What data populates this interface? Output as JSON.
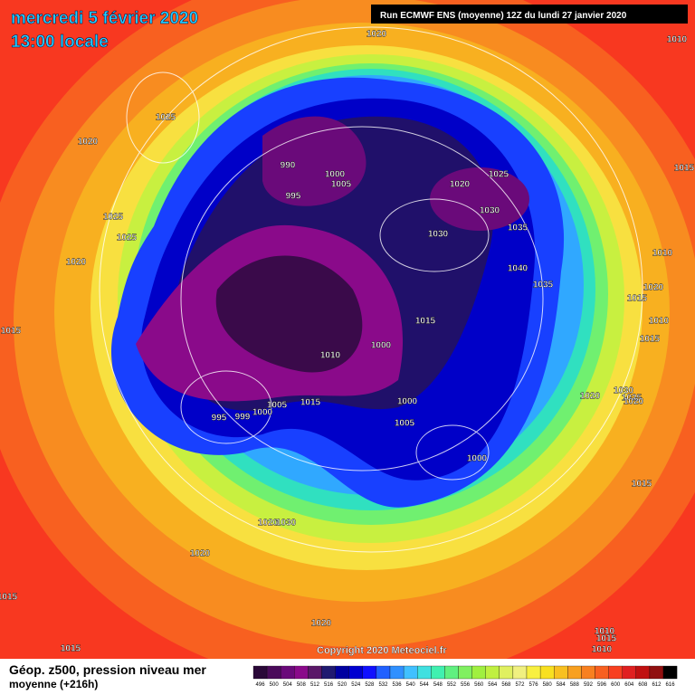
{
  "header": {
    "title": "mercredi 5 février 2020",
    "subtitle": "13:00 locale",
    "run": "Run ECMWF ENS (moyenne) 12Z du lundi 27 janvier 2020"
  },
  "isobar_labels": [
    "1020",
    "1010",
    "1025",
    "1020",
    "990",
    "1000",
    "1005",
    "995",
    "1020",
    "1025",
    "1030",
    "1030",
    "1035",
    "1015",
    "1025",
    "1025",
    "1020",
    "1040",
    "1035",
    "1010",
    "1020",
    "1015",
    "1015",
    "1015",
    "1000",
    "1010",
    "1010",
    "1015",
    "1005",
    "1015",
    "1000",
    "999",
    "995",
    "1000",
    "1005",
    "1020",
    "1030",
    "1025",
    "1020",
    "1000",
    "1015",
    "1020",
    "1030",
    "1020",
    "1015",
    "1020",
    "1015",
    "1010",
    "1015",
    "1010"
  ],
  "footer": {
    "product": "Géop. z500, pression niveau mer",
    "mean": "moyenne  (+216h)",
    "copyright": "Copyright 2020 Meteociel.fr"
  },
  "colorbar": [
    496,
    500,
    504,
    508,
    512,
    516,
    520,
    524,
    528,
    532,
    536,
    540,
    544,
    548,
    552,
    556,
    560,
    564,
    568,
    572,
    576,
    580,
    584,
    588,
    592,
    596,
    600,
    604,
    608,
    612,
    616
  ]
}
